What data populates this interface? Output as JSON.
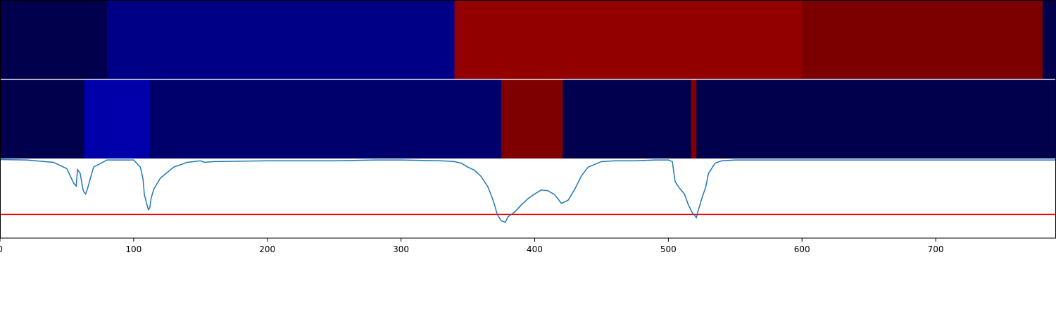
{
  "chart_data": [
    {
      "type": "heatmap",
      "xlim": [
        0,
        790
      ],
      "segments": [
        {
          "x0": 0,
          "x1": 80,
          "color": "#00004c"
        },
        {
          "x0": 80,
          "x1": 340,
          "color": "#000087"
        },
        {
          "x0": 340,
          "x1": 600,
          "color": "#920000"
        },
        {
          "x0": 600,
          "x1": 780,
          "color": "#7c0000"
        },
        {
          "x0": 780,
          "x1": 790,
          "color": "#00004c"
        }
      ]
    },
    {
      "type": "heatmap",
      "xlim": [
        0,
        790
      ],
      "segments": [
        {
          "x0": 0,
          "x1": 63,
          "color": "#00004c"
        },
        {
          "x0": 63,
          "x1": 112,
          "color": "#0000ab"
        },
        {
          "x0": 112,
          "x1": 375,
          "color": "#00006c"
        },
        {
          "x0": 375,
          "x1": 421,
          "color": "#7f0000"
        },
        {
          "x0": 421,
          "x1": 517,
          "color": "#00004f"
        },
        {
          "x0": 517,
          "x1": 521,
          "color": "#820000"
        },
        {
          "x0": 521,
          "x1": 790,
          "color": "#00004c"
        }
      ]
    },
    {
      "type": "line",
      "xlim": [
        0,
        790
      ],
      "ylim": [
        0,
        1
      ],
      "threshold": 0.3,
      "threshold_color": "#ff0000",
      "line_color": "#1f77b4",
      "xticks": [
        "0",
        "100",
        "200",
        "300",
        "400",
        "500",
        "600",
        "700"
      ],
      "series": [
        {
          "x": [
            0,
            20,
            40,
            50,
            55,
            57,
            58,
            60,
            62,
            63,
            64,
            65,
            70,
            80,
            90,
            100,
            105,
            107,
            108,
            110,
            111,
            112,
            113,
            115,
            120,
            130,
            140,
            150,
            153,
            160,
            200,
            250,
            280,
            300,
            330,
            340,
            345,
            350,
            355,
            360,
            365,
            368,
            370,
            372,
            375,
            378,
            380,
            385,
            390,
            395,
            400,
            405,
            410,
            415,
            420,
            425,
            430,
            435,
            440,
            450,
            460,
            475,
            490,
            500,
            503,
            505,
            508,
            512,
            515,
            518,
            520,
            521,
            522,
            525,
            528,
            530,
            535,
            540,
            550,
            600,
            650,
            700,
            750,
            790
          ],
          "y": [
            0.995,
            0.99,
            0.96,
            0.88,
            0.7,
            0.66,
            0.87,
            0.82,
            0.62,
            0.58,
            0.56,
            0.6,
            0.9,
            0.99,
            0.99,
            0.99,
            0.9,
            0.75,
            0.55,
            0.42,
            0.36,
            0.38,
            0.5,
            0.62,
            0.76,
            0.9,
            0.96,
            0.98,
            0.96,
            0.97,
            0.98,
            0.98,
            0.99,
            0.99,
            0.98,
            0.97,
            0.95,
            0.9,
            0.86,
            0.78,
            0.65,
            0.52,
            0.42,
            0.3,
            0.22,
            0.2,
            0.27,
            0.33,
            0.42,
            0.5,
            0.56,
            0.61,
            0.6,
            0.55,
            0.44,
            0.48,
            0.62,
            0.79,
            0.9,
            0.97,
            0.98,
            0.98,
            0.99,
            0.99,
            0.97,
            0.72,
            0.64,
            0.56,
            0.42,
            0.32,
            0.28,
            0.26,
            0.33,
            0.5,
            0.65,
            0.82,
            0.95,
            0.98,
            0.99,
            0.99,
            0.99,
            0.99,
            0.99,
            0.99
          ]
        }
      ]
    }
  ]
}
